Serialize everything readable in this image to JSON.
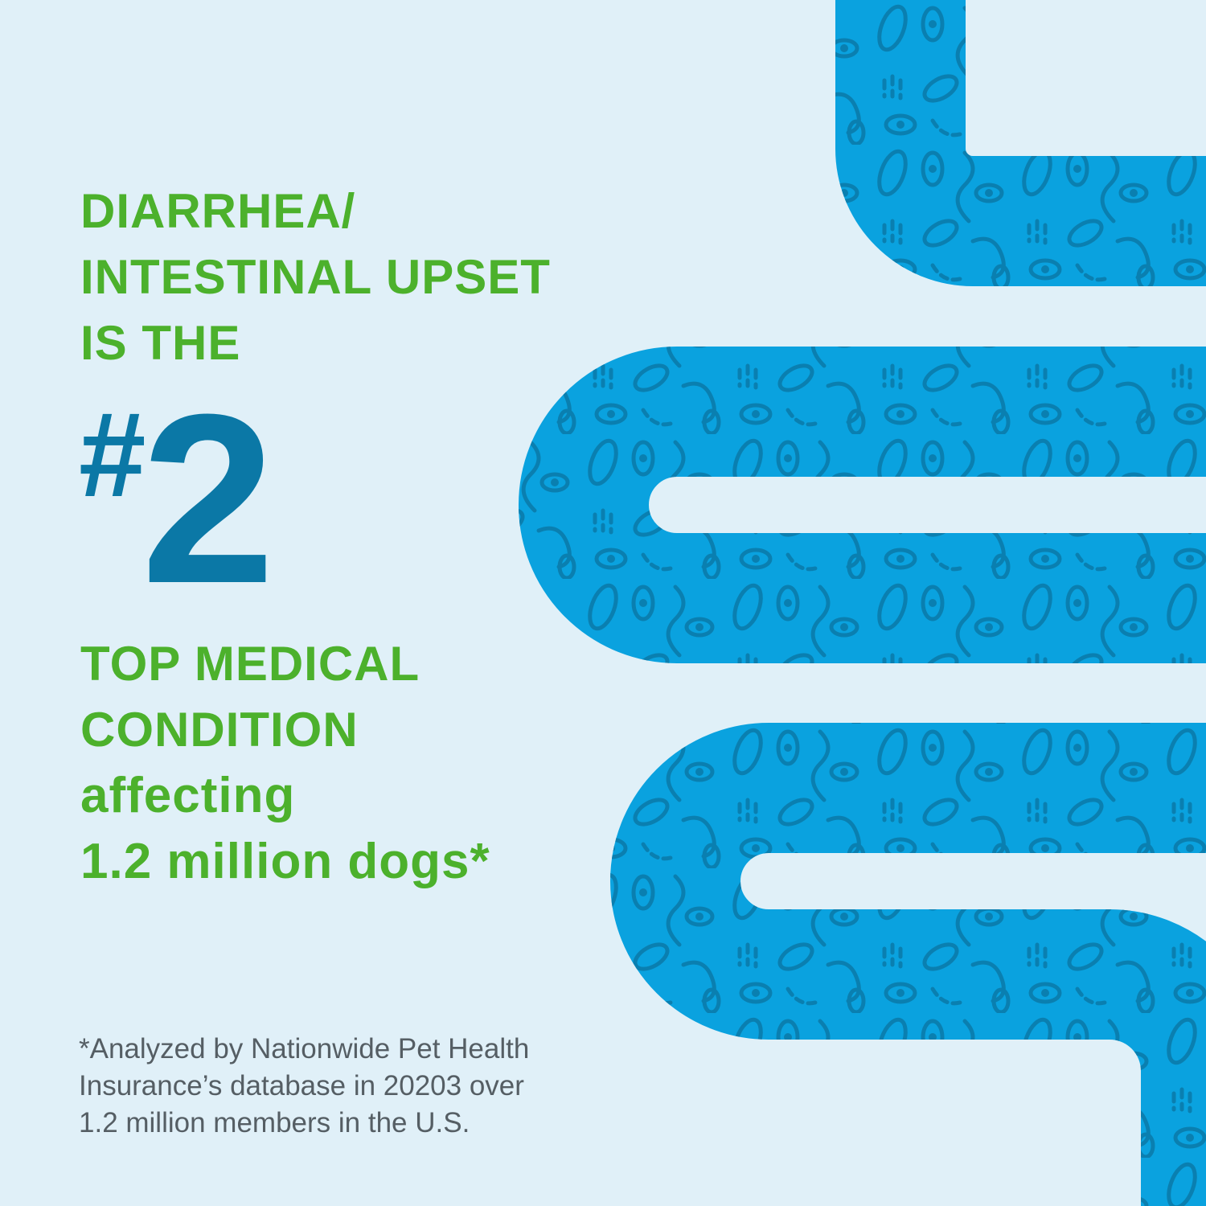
{
  "headline": {
    "line1": "DIARRHEA/",
    "line2": "INTESTINAL UPSET",
    "line3": "IS THE",
    "rank_symbol": "#",
    "rank_number": "2",
    "line4": "TOP MEDICAL",
    "line5": "CONDITION",
    "line6": "affecting",
    "line7": "1.2 million dogs*"
  },
  "footnote": {
    "line1": "*Analyzed by Nationwide Pet Health",
    "line2": "Insurance’s database in 20203 over",
    "line3": "1.2 million members in the U.S."
  },
  "colors": {
    "background": "#e0f0f8",
    "headline_green": "#4cb12c",
    "rank_blue": "#0b78a6",
    "intestine_blue": "#0aa2df",
    "pattern_blue": "#0a7fb0",
    "footnote_gray": "#555e64"
  },
  "illustration": "intestine-icon"
}
